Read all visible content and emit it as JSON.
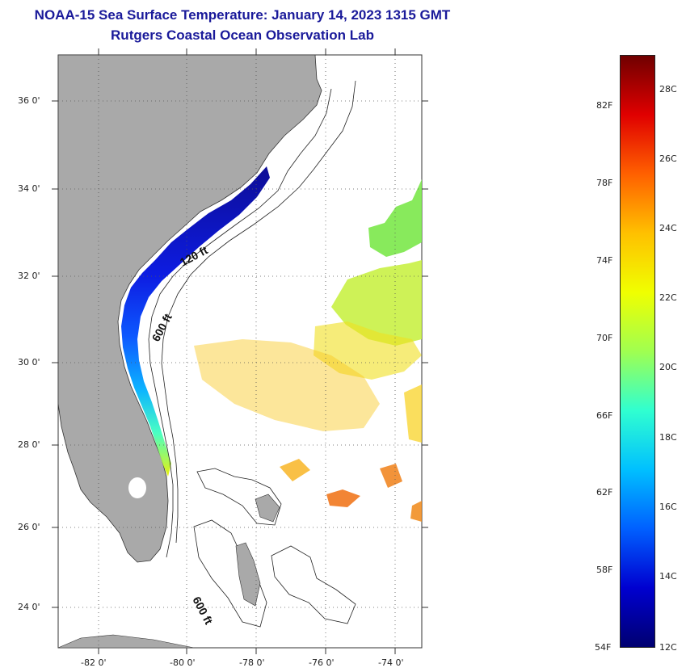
{
  "header": {
    "title": "NOAA-15 Sea Surface Temperature:  January 14, 2023 1315 GMT",
    "subtitle": "Rutgers Coastal Ocean Observation Lab"
  },
  "map": {
    "lat_labels": [
      "36 0'",
      "34 0'",
      "32 0'",
      "30 0'",
      "28 0'",
      "26 0'",
      "24 0'"
    ],
    "lon_labels": [
      "-82 0'",
      "-80 0'",
      "-78 0'",
      "-76 0'",
      "-74 0'"
    ],
    "contour_labels": [
      "120 ft",
      "600 ft",
      "600 ft"
    ],
    "colors": {
      "land": "#a9a9a9",
      "ocean": "#ffffff"
    }
  },
  "colorbar": {
    "fahrenheit": [
      "82F",
      "78F",
      "74F",
      "70F",
      "66F",
      "62F",
      "58F",
      "54F"
    ],
    "celsius": [
      "28C",
      "26C",
      "24C",
      "22C",
      "20C",
      "18C",
      "16C",
      "14C",
      "12C"
    ],
    "stops": [
      "#000070",
      "#0000d0",
      "#0060ff",
      "#00c0ff",
      "#30ffd0",
      "#a0ff50",
      "#f0ff00",
      "#ffc000",
      "#ff6000",
      "#e00000",
      "#700000"
    ]
  }
}
